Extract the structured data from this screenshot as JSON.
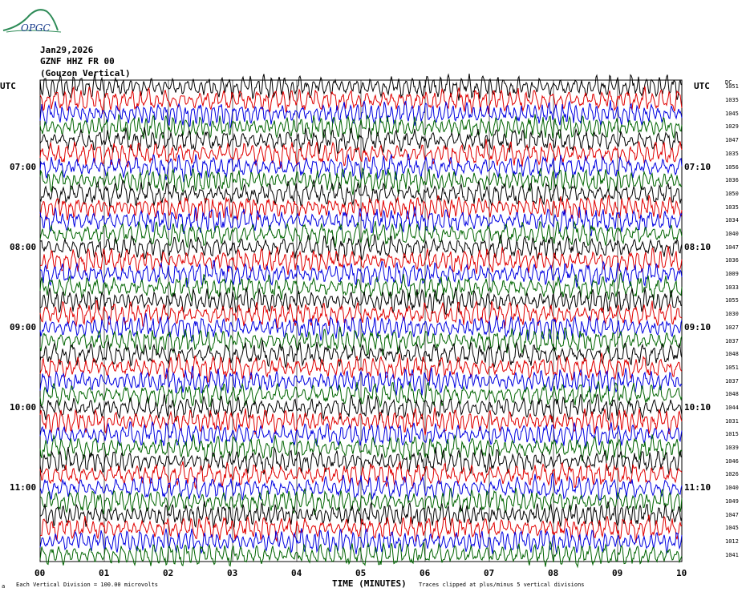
{
  "header": {
    "logo_text": "OPGC",
    "date": "Jan29,2026",
    "station": "GZNF HHZ FR 00",
    "location": "(Gouzon Vertical)"
  },
  "axes": {
    "left_unit": "UTC",
    "right_unit": "UTC",
    "dc_header": "DC",
    "x_title": "TIME (MINUTES)",
    "x_ticks": [
      "00",
      "01",
      "02",
      "03",
      "04",
      "05",
      "06",
      "07",
      "08",
      "09",
      "10"
    ],
    "left_hour_labels": [
      "07:00",
      "08:00",
      "09:00",
      "10:00",
      "11:00"
    ],
    "right_hour_labels": [
      "07:10",
      "08:10",
      "09:10",
      "10:10",
      "11:10"
    ]
  },
  "footer": {
    "mark": "a",
    "scale_note": "Each Vertical Division =  100.00 microvolts",
    "clip_note": "Traces clipped at plus/minus 5 vertical divisions"
  },
  "chart_data": {
    "type": "line",
    "title": "",
    "xlabel": "TIME (MINUTES)",
    "xlim": [
      0,
      10
    ],
    "trace_colors": [
      "#000000",
      "#e00000",
      "#0000e0",
      "#006400"
    ],
    "grid": true,
    "dc_offsets": [
      "1051",
      "1035",
      "1045",
      "1029",
      "1047",
      "1035",
      "1056",
      "1036",
      "1050",
      "1035",
      "1034",
      "1040",
      "1047",
      "1036",
      "1009",
      "1033",
      "1055",
      "1030",
      "1027",
      "1037",
      "1048",
      "1051",
      "1037",
      "1048",
      "1044",
      "1031",
      "1015",
      "1039",
      "1046",
      "1026",
      "1040",
      "1049",
      "1047",
      "1045",
      "1012",
      "1041"
    ]
  }
}
